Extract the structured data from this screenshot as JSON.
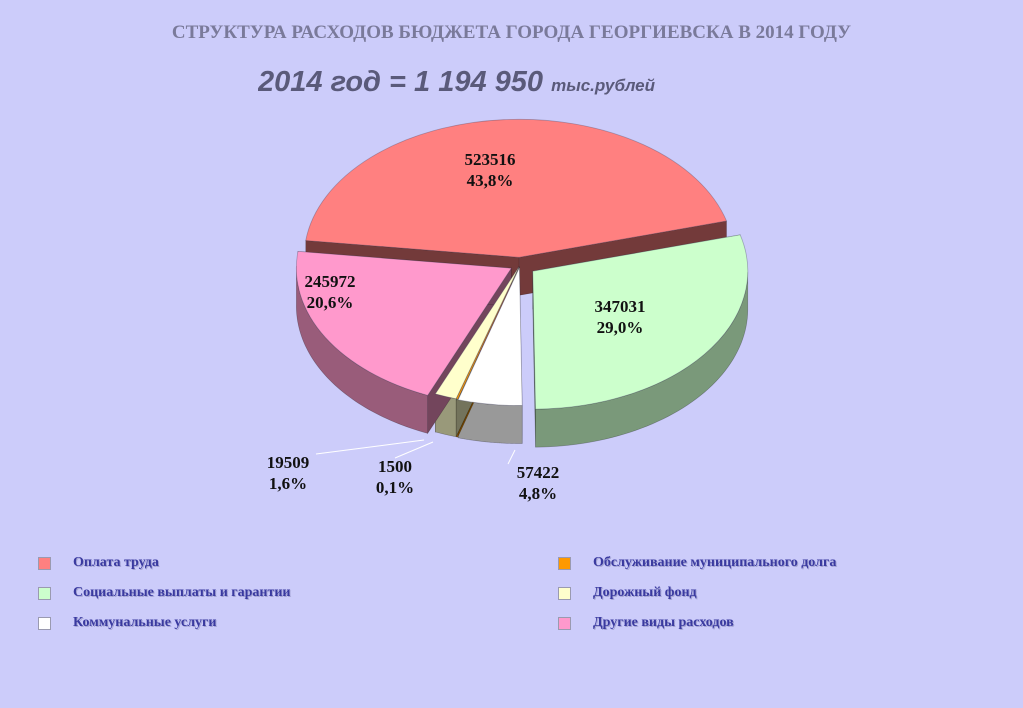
{
  "title": "СТРУКТУРА РАСХОДОВ БЮДЖЕТА ГОРОДА ГЕОРГИЕВСКА В 2014 ГОДУ",
  "subtitle_main": "2014 год = 1 194 950 ",
  "subtitle_unit": "тыс.рублей",
  "chart_data": {
    "type": "pie",
    "title": "СТРУКТУРА РАСХОДОВ БЮДЖЕТА ГОРОДА ГЕОРГИЕВСКА В 2014 ГОДУ",
    "total": "1 194 950",
    "unit": "тыс.рублей",
    "legend_placement": "bottom",
    "slices": [
      {
        "name": "Оплата труда",
        "value": 523516,
        "value_label": "523516",
        "percent": 43.8,
        "percent_label": "43,8%",
        "color": "#ff8080"
      },
      {
        "name": "Социальные выплаты и гарантии",
        "value": 347031,
        "value_label": "347031",
        "percent": 29.0,
        "percent_label": "29,0%",
        "color": "#ccffcc"
      },
      {
        "name": "Коммунальные услуги",
        "value": 57422,
        "value_label": "57422",
        "percent": 4.8,
        "percent_label": "4,8%",
        "color": "#ffffff"
      },
      {
        "name": "Обслуживание муниципального долга",
        "value": 1500,
        "value_label": "1500",
        "percent": 0.1,
        "percent_label": "0,1%",
        "color": "#ff9900"
      },
      {
        "name": "Дорожный фонд",
        "value": 19509,
        "value_label": "19509",
        "percent": 1.6,
        "percent_label": "1,6%",
        "color": "#ffffcc"
      },
      {
        "name": "Другие виды расходов",
        "value": 245972,
        "value_label": "245972",
        "percent": 20.6,
        "percent_label": "20,6%",
        "color": "#ff99cc"
      }
    ]
  },
  "legend": [
    {
      "label": "Оплата труда",
      "color": "#ff8080"
    },
    {
      "label": "Социальные выплаты и гарантии",
      "color": "#ccffcc"
    },
    {
      "label": "Коммунальные услуги",
      "color": "#ffffff"
    },
    {
      "label": "Обслуживание муниципального долга",
      "color": "#ff9900"
    },
    {
      "label": "Дорожный фонд",
      "color": "#ffffcc"
    },
    {
      "label": "Другие виды расходов",
      "color": "#ff99cc"
    }
  ]
}
